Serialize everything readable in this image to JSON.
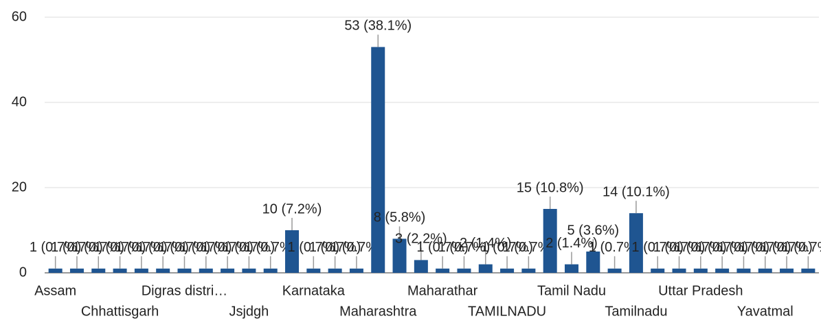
{
  "chart_data": {
    "type": "bar",
    "categories": [
      "Assam",
      null,
      null,
      "Chhattisgarh",
      null,
      null,
      "Digras distri…",
      null,
      null,
      "Jsjdgh",
      null,
      null,
      "Karnataka",
      null,
      null,
      "Maharashtra",
      null,
      null,
      "Maharathar",
      null,
      null,
      "TAMILNADU",
      null,
      null,
      "Tamil Nadu",
      null,
      null,
      "Tamilnadu",
      null,
      null,
      "Uttar Pradesh",
      null,
      null,
      "Yavatmal",
      null,
      null
    ],
    "values": [
      1,
      1,
      1,
      1,
      1,
      1,
      1,
      1,
      1,
      1,
      1,
      10,
      1,
      1,
      1,
      53,
      8,
      3,
      1,
      1,
      2,
      1,
      1,
      15,
      2,
      5,
      1,
      14,
      1,
      1,
      1,
      1,
      1,
      1,
      1,
      1
    ],
    "value_labels": [
      "1 (0.7%)",
      "1 (0.7%)",
      "1 (0.7%)",
      "1 (0.7%)",
      "1 (0.7%)",
      "1 (0.7%)",
      "1 (0.7%)",
      "1 (0.7%)",
      "1 (0.7%)",
      "1 (0.7%)",
      "1 (0.7%)",
      "10 (7.2%)",
      "1 (0.7%)",
      "1 (0.7%)",
      "1 (0.7%)",
      "53 (38.1%)",
      "8 (5.8%)",
      "3 (2.2%)",
      "1 (0.7%)",
      "1 (0.7%)",
      "2 (1.4%)",
      "1 (0.7%)",
      "1 (0.7%)",
      "15 (10.8%)",
      "2 (1.4%)",
      "5 (3.6%)",
      "1 (0.7%)",
      "14 (10.1%)",
      "1 (0.7%)",
      "1 (0.7%)",
      "1 (0.7%)",
      "1 (0.7%)",
      "1 (0.7%)",
      "1 (0.7%)",
      "1 (0.7%)",
      "1 (0.7%)"
    ],
    "color": "#1f5591",
    "ylim": [
      0,
      60
    ],
    "yticks": [
      0,
      20,
      40,
      60
    ],
    "grid": true
  }
}
